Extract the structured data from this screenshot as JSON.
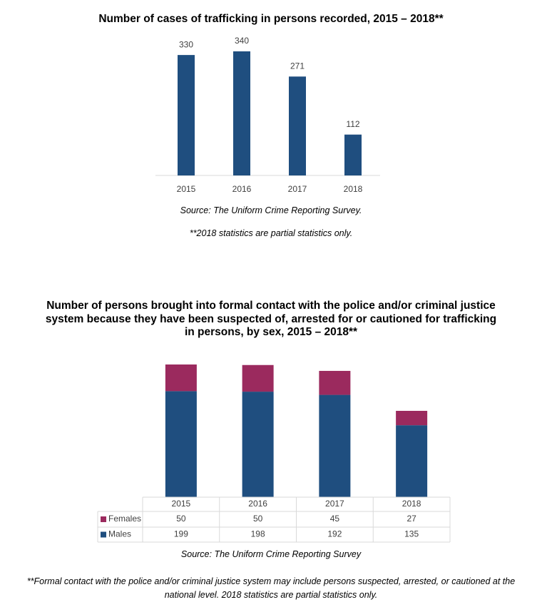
{
  "chart_data": [
    {
      "type": "bar",
      "title": "Number of cases of trafficking in persons recorded, 2015 – 2018**",
      "categories": [
        "2015",
        "2016",
        "2017",
        "2018"
      ],
      "values": [
        330,
        340,
        271,
        112
      ],
      "color": "#1f4e7f",
      "source": "Source: The Uniform Crime Reporting Survey.",
      "note": "**2018 statistics are partial statistics only."
    },
    {
      "type": "stacked_bar",
      "title": "Number of persons brought into formal contact with the police and/or criminal justice system because they have been suspected of, arrested for or cautioned for trafficking in persons, by sex, 2015 – 2018**",
      "categories": [
        "2015",
        "2016",
        "2017",
        "2018"
      ],
      "series": [
        {
          "name": "Females",
          "color": "#9b2a5e",
          "values": [
            50,
            50,
            45,
            27
          ]
        },
        {
          "name": "Males",
          "color": "#1f4e7f",
          "values": [
            199,
            198,
            192,
            135
          ]
        }
      ],
      "source": "Source: The Uniform Crime Reporting Survey",
      "note": "**Formal contact with the police and/or criminal justice system may include persons suspected, arrested, or cautioned at the national level. 2018 statistics are partial statistics only."
    }
  ]
}
